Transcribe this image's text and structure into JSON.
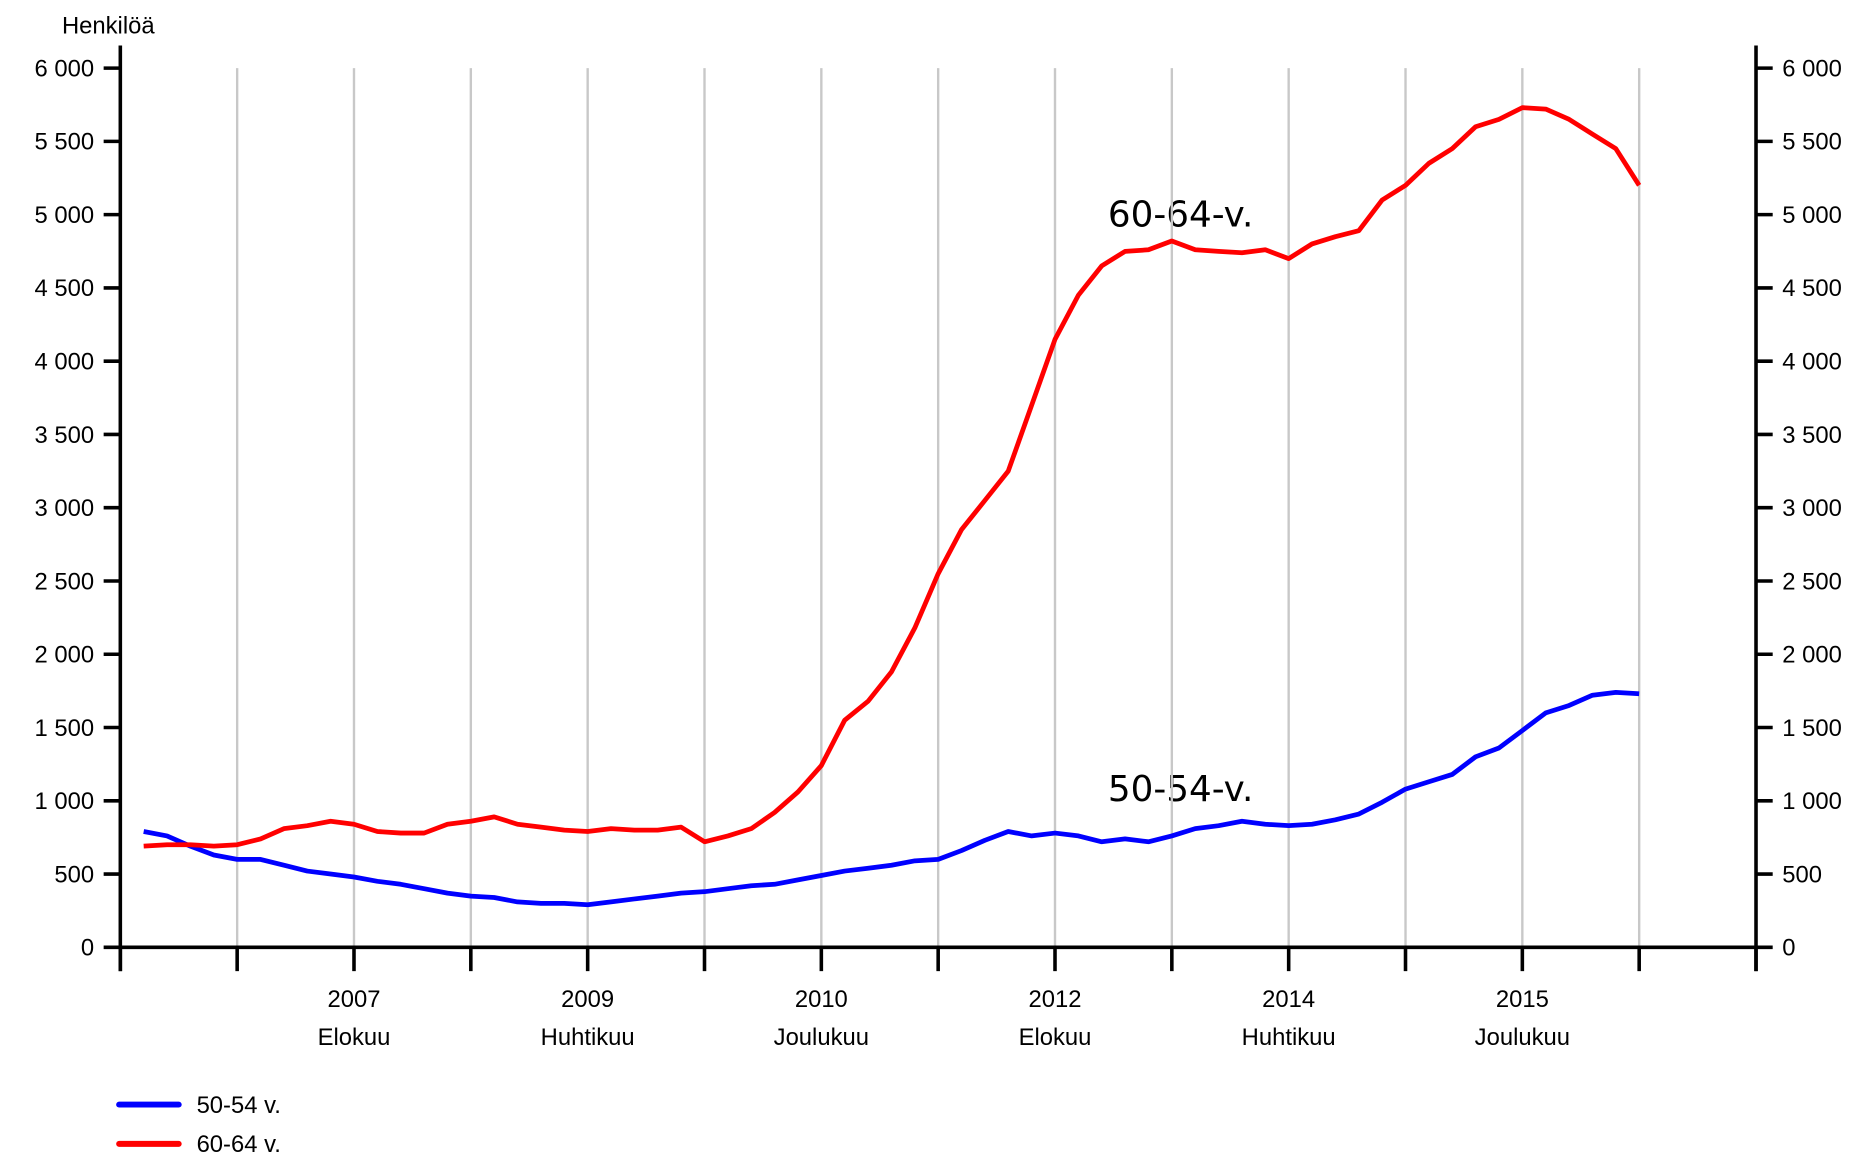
{
  "chart_data": {
    "type": "line",
    "ylabel": "Henkilöä",
    "categories": [
      null,
      null,
      null,
      null,
      null,
      null,
      null,
      null,
      null,
      null,
      [
        "2007",
        "Elokuu"
      ],
      null,
      null,
      null,
      null,
      null,
      null,
      null,
      null,
      null,
      [
        "2009",
        "Huhtikuu"
      ],
      null,
      null,
      null,
      null,
      null,
      null,
      null,
      null,
      null,
      [
        "2010",
        "Joulukuu"
      ],
      null,
      null,
      null,
      null,
      null,
      null,
      null,
      null,
      null,
      [
        "2012",
        "Elokuu"
      ],
      null,
      null,
      null,
      null,
      null,
      null,
      null,
      null,
      null,
      [
        "2014",
        "Huhtikuu"
      ],
      null,
      null,
      null,
      null,
      null,
      null,
      null,
      null,
      null,
      [
        "2015",
        "Joulukuu"
      ],
      null,
      null,
      null,
      null,
      null,
      null,
      null,
      null,
      null,
      null
    ],
    "series": [
      {
        "name": "50-54 v.",
        "color": "#0000ff",
        "values": [
          null,
          790,
          760,
          690,
          630,
          600,
          600,
          560,
          520,
          500,
          480,
          450,
          430,
          400,
          370,
          350,
          340,
          310,
          300,
          300,
          290,
          310,
          330,
          350,
          370,
          380,
          400,
          420,
          430,
          460,
          490,
          520,
          540,
          560,
          590,
          600,
          660,
          730,
          790,
          760,
          780,
          760,
          720,
          740,
          720,
          760,
          810,
          830,
          860,
          840,
          830,
          840,
          870,
          910,
          990,
          1080,
          1130,
          1180,
          1300,
          1360,
          1480,
          1600,
          1650,
          1720,
          1740,
          1730,
          null,
          null,
          null,
          null,
          null
        ]
      },
      {
        "name": "60-64 v.",
        "color": "#ff0000",
        "values": [
          null,
          690,
          700,
          700,
          690,
          700,
          740,
          810,
          830,
          860,
          840,
          790,
          780,
          780,
          840,
          860,
          890,
          840,
          820,
          800,
          790,
          810,
          800,
          800,
          820,
          720,
          760,
          810,
          920,
          1060,
          1240,
          1550,
          1680,
          1880,
          2180,
          2550,
          2850,
          3050,
          3250,
          3700,
          4150,
          4450,
          4650,
          4750,
          4760,
          4820,
          4760,
          4750,
          4740,
          4760,
          4700,
          4800,
          4850,
          4890,
          5100,
          5200,
          5350,
          5450,
          5600,
          5650,
          5730,
          5720,
          5650,
          5550,
          5450,
          5200,
          null,
          null,
          null,
          null,
          null
        ]
      }
    ],
    "annotations": [
      "60-64-v.",
      "50-54-v."
    ],
    "ylim": [
      0,
      6000
    ],
    "yticks": [
      0,
      500,
      {
        "value": 1000,
        "label": "1 000"
      },
      {
        "value": 1500,
        "label": "1 500"
      },
      {
        "value": 2000,
        "label": "2 000"
      },
      {
        "value": 2500,
        "label": "2 500"
      },
      {
        "value": 3000,
        "label": "3 000"
      },
      {
        "value": 3500,
        "label": "3 500"
      },
      {
        "value": 4000,
        "label": "4 000"
      },
      {
        "value": 4500,
        "label": "4 500"
      },
      {
        "value": 5000,
        "label": "5 000"
      },
      {
        "value": 5500,
        "label": "5 500"
      },
      {
        "value": 6000,
        "label": "6 000"
      }
    ],
    "grid": "x",
    "legend": "bottom-left"
  }
}
